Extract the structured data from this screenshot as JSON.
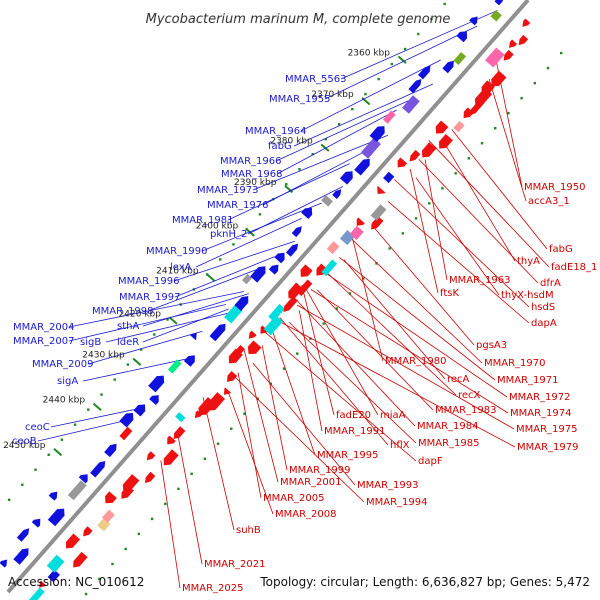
{
  "title": "Mycobacterium marinum M, complete genome",
  "footer": {
    "accession": "Accession: NC_010612",
    "summary": "Topology: circular; Length: 6,636,827 bp; Genes: 5,472"
  },
  "colors": {
    "backbone": "#888888",
    "forward_gene": "#1111dd",
    "reverse_gene": "#ee1111",
    "tick": "#228822",
    "left_label": "#1a1acc",
    "right_label": "#cc0000"
  },
  "ticks": [
    "2360 kbp",
    "2370 kbp",
    "2380 kbp",
    "2390 kbp",
    "2400 kbp",
    "2410 kbp",
    "2420 kbp",
    "2430 kbp",
    "2440 kbp",
    "2450 kbp"
  ],
  "labels_left": [
    "MMAR_5563",
    "MMAR_1955",
    "MMAR_1964",
    "fabG",
    "MMAR_1966",
    "MMAR_1968",
    "MMAR_1973",
    "MMAR_1976",
    "MMAR_1981",
    "pknH_2",
    "MMAR_1990",
    "lexA",
    "MMAR_1996",
    "MMAR_1997",
    "MMAR_1998",
    "sthA",
    "MMAR_2004",
    "MMAR_2007",
    "sigB",
    "ideR",
    "MMAR_2009",
    "sigA",
    "ceoC",
    "ceoB"
  ],
  "labels_right": [
    "MMAR_1950",
    "accA3_1",
    "fabG",
    "thyA",
    "fadE18_1",
    "dfrA",
    "MMAR_1963",
    "thyX-hsdM",
    "hsdS",
    "ftsK",
    "dapA",
    "pgsA3",
    "MMAR_1970",
    "MMAR_1980",
    "MMAR_1971",
    "recA",
    "MMAR_1972",
    "recX",
    "MMAR_1974",
    "MMAR_1983",
    "fadE20",
    "miaA",
    "MMAR_1975",
    "MMAR_1991",
    "MMAR_1984",
    "hflX",
    "MMAR_1979",
    "MMAR_1985",
    "dapF",
    "MMAR_1995",
    "MMAR_1999",
    "MMAR_1993",
    "MMAR_2001",
    "MMAR_1994",
    "MMAR_2005",
    "MMAR_2008",
    "suhB",
    "MMAR_2021",
    "MMAR_2025"
  ]
}
